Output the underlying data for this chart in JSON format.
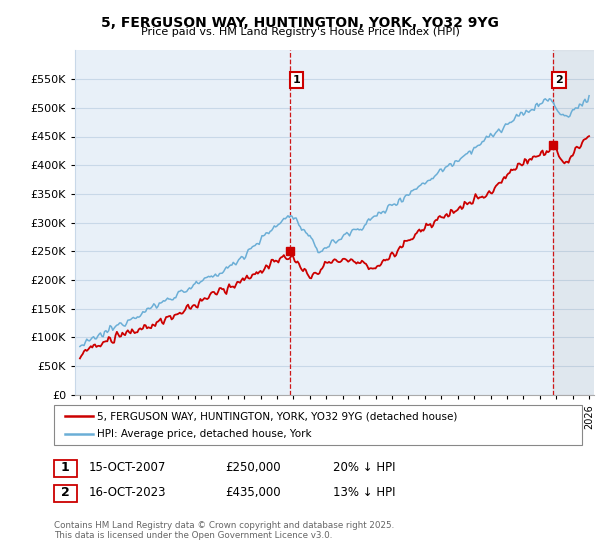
{
  "title": "5, FERGUSON WAY, HUNTINGTON, YORK, YO32 9YG",
  "subtitle": "Price paid vs. HM Land Registry's House Price Index (HPI)",
  "ylim": [
    0,
    600000
  ],
  "yticks": [
    0,
    50000,
    100000,
    150000,
    200000,
    250000,
    300000,
    350000,
    400000,
    450000,
    500000,
    550000
  ],
  "hpi_color": "#6baed6",
  "price_color": "#cc0000",
  "vline_color": "#cc0000",
  "grid_color": "#c8d8e8",
  "bg_color": "#e8f0f8",
  "legend_label_price": "5, FERGUSON WAY, HUNTINGTON, YORK, YO32 9YG (detached house)",
  "legend_label_hpi": "HPI: Average price, detached house, York",
  "annotation1_date": "15-OCT-2007",
  "annotation1_price": "£250,000",
  "annotation1_hpi": "20% ↓ HPI",
  "annotation2_date": "16-OCT-2023",
  "annotation2_price": "£435,000",
  "annotation2_hpi": "13% ↓ HPI",
  "footnote": "Contains HM Land Registry data © Crown copyright and database right 2025.\nThis data is licensed under the Open Government Licence v3.0.",
  "xstart_year": 1995,
  "xend_year": 2026,
  "sale1_year": 2007.79,
  "sale1_price": 250000,
  "sale2_year": 2023.79,
  "sale2_price": 435000
}
